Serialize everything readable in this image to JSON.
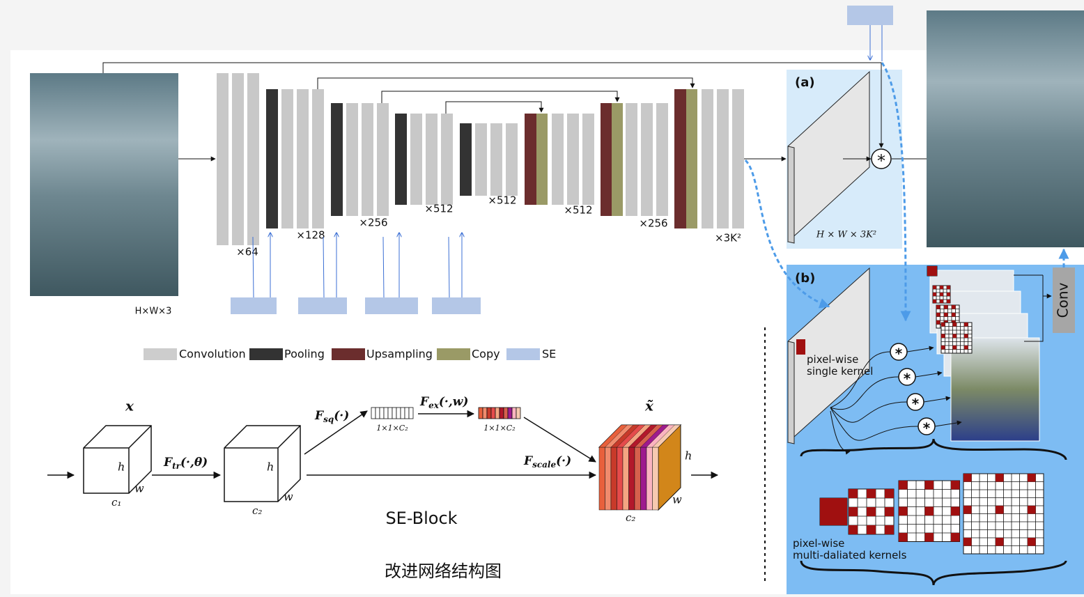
{
  "unet": {
    "labels": [
      "×64",
      "×128",
      "×256",
      "×512",
      "×512",
      "×512",
      "×256",
      "×3K²"
    ],
    "input_label": "H×W×3"
  },
  "legend": [
    "Convolution",
    "Pooling",
    "Upsampling",
    "Copy",
    "SE"
  ],
  "panel_a": {
    "tag": "(a)",
    "label": "H × W × 3K²"
  },
  "panel_b": {
    "tag": "(b)",
    "single_kernel": [
      "pixel-wise",
      "single kernel"
    ],
    "multi_kernels": [
      "pixel-wise",
      "multi-daliated kernels"
    ],
    "conv": "Conv"
  },
  "se_block": {
    "input": "x",
    "output": "x̃",
    "f_tr": {
      "main": "F",
      "sub": "tr",
      "args": "(·,θ)"
    },
    "f_sq": {
      "main": "F",
      "sub": "sq",
      "args": "(·)"
    },
    "f_ex": {
      "main": "F",
      "sub": "ex",
      "args": "(·,w)"
    },
    "f_scale": {
      "main": "F",
      "sub": "scale",
      "args": "(·)"
    },
    "vec1": "1×1×C₂",
    "vec2": "1×1×C₂",
    "cube1": {
      "h": "h",
      "w": "w",
      "c": "c₁"
    },
    "cube2": {
      "h": "h",
      "w": "w",
      "c": "c₂"
    },
    "cube3": {
      "h": "h",
      "w": "w",
      "c": "c₂"
    },
    "title": "SE-Block"
  },
  "caption": "改进网络结构图"
}
